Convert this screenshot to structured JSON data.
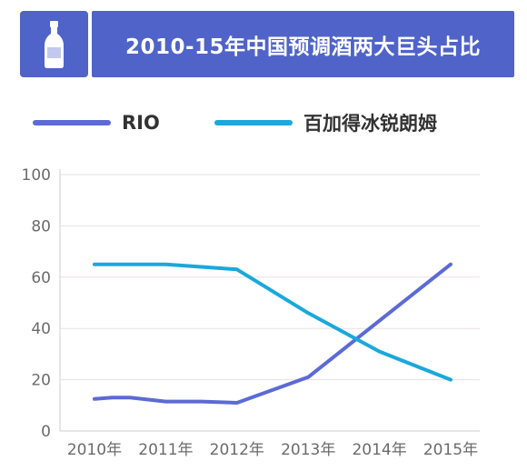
{
  "title": "2010-15年中国预调酒两大巨头占比",
  "colors": {
    "header_bg": "#5063c8",
    "rio": "#5b6ad6",
    "baijia": "#1aa8dc",
    "grid": "#e9dfe3",
    "axis_text": "#6b6b6b"
  },
  "icon": "bottle-icon",
  "chart_data": {
    "type": "line",
    "title": "2010-15年中国预调酒两大巨头占比",
    "xlabel": "",
    "ylabel": "",
    "categories": [
      "2010年",
      "2011年",
      "2012年",
      "2013年",
      "2014年",
      "2015年"
    ],
    "x": [
      2010,
      2010.25,
      2010.5,
      2011,
      2011.5,
      2012,
      2013,
      2014,
      2015
    ],
    "ylim": [
      0,
      100
    ],
    "yticks": [
      0,
      20,
      40,
      60,
      80,
      100
    ],
    "grid": true,
    "legend_position": "top",
    "series": [
      {
        "name": "RIO",
        "color": "#5b6ad6",
        "values": [
          12.5,
          13,
          13,
          11.5,
          11.5,
          11,
          21,
          43,
          65
        ]
      },
      {
        "name": "百加得冰锐朗姆",
        "color": "#1aa8dc",
        "values": [
          65,
          65,
          65,
          65,
          64,
          63,
          46,
          31,
          20
        ]
      }
    ]
  }
}
